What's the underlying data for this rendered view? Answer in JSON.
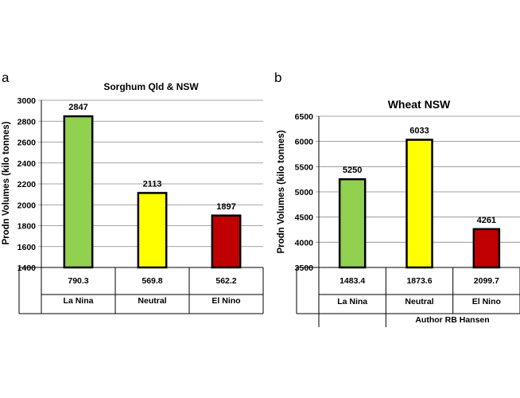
{
  "chart_data": [
    {
      "panel": "a",
      "type": "bar",
      "title": "Sorghum Qld & NSW",
      "ylabel": "Prodn Volumes  (kilo tonnes)",
      "ylim": [
        1400,
        3000
      ],
      "yticks": [
        1400,
        1600,
        1800,
        2000,
        2200,
        2400,
        2600,
        2800,
        3000
      ],
      "grid": true,
      "categories": [
        "La Nina",
        "Neutral",
        "El Nino"
      ],
      "values": [
        2847,
        2113,
        1897
      ],
      "table_row": [
        "790.3",
        "569.8",
        "562.2"
      ],
      "colors": [
        "#92D050",
        "#FFFF00",
        "#C00000"
      ]
    },
    {
      "panel": "b",
      "type": "bar",
      "title": "Wheat NSW",
      "ylabel": "Prodn Volumes  (kilo tonnes)",
      "ylim": [
        3500,
        6500
      ],
      "yticks": [
        3500,
        4000,
        4500,
        5000,
        5500,
        6000,
        6500
      ],
      "grid": true,
      "categories": [
        "La Nina",
        "Neutral",
        "El Nino"
      ],
      "values": [
        5250,
        6033,
        4261
      ],
      "table_row": [
        "1483.4",
        "1873.6",
        "2099.7"
      ],
      "colors": [
        "#92D050",
        "#FFFF00",
        "#C00000"
      ]
    }
  ],
  "credit": "Author RB Hansen"
}
